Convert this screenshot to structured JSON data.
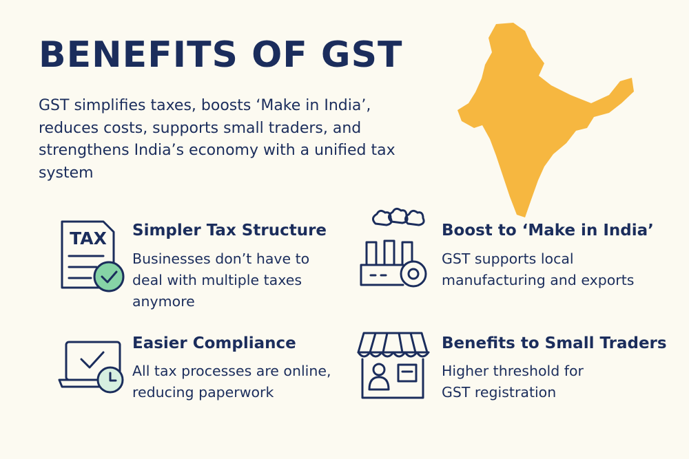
{
  "header": {
    "title": "BENEFITS OF GST",
    "intro": "GST simplifies taxes, boosts ‘Make in India’, reduces costs, supports small traders, and strengthens India’s economy with a unified tax system"
  },
  "icons": {
    "tax_label": "TAX"
  },
  "benefits": [
    {
      "title": "Simpler Tax Structure",
      "description": "Businesses don’t have to deal with multiple taxes anymore"
    },
    {
      "title": "Boost to ‘Make in India’",
      "description": "GST supports local manufacturing and exports"
    },
    {
      "title": "Easier Compliance",
      "description": "All tax processes are online, reducing paperwork"
    },
    {
      "title": "Benefits to Small Traders",
      "description": "Higher threshold for GST registration"
    }
  ]
}
